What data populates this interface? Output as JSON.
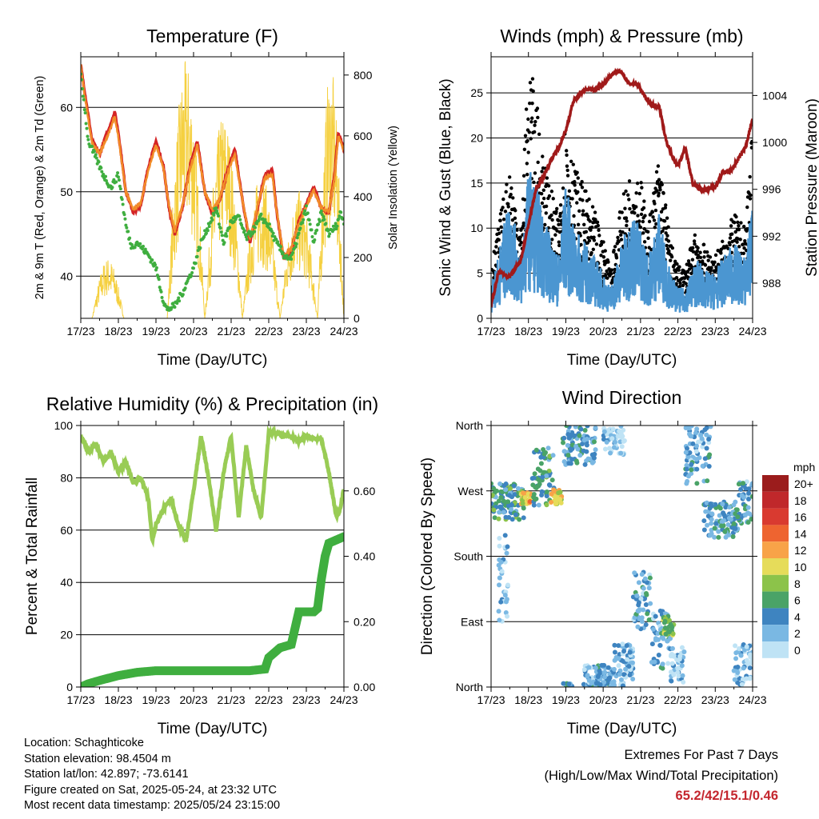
{
  "colors": {
    "temp_red": "#d42426",
    "temp_orange": "#f28c28",
    "dewpoint_green": "#3fae3f",
    "solar_yellow": "#f5d040",
    "wind_blue": "#4b96d1",
    "gust_black": "#000000",
    "pressure_maroon": "#a01a1a",
    "rh_green": "#99cc55",
    "precip_green": "#3fae3f",
    "extremes_red": "#c4262e"
  },
  "x_ticks": [
    "17/23",
    "18/23",
    "19/23",
    "20/23",
    "21/23",
    "22/23",
    "23/23",
    "24/23"
  ],
  "info": {
    "location": "Location: Schaghticoke",
    "elevation": "Station elevation: 98.4504 m",
    "latlon": "Station lat/lon: 42.897; -73.6141",
    "created": "Figure created on Sat, 2025-05-24, at 23:32 UTC",
    "latest": "Most recent data timestamp: 2025/05/24 23:15:00"
  },
  "extremes": {
    "title": "Extremes For Past 7 Days",
    "subtitle": "(High/Low/Max Wind/Total Precipitation)",
    "values": "65.2/42/15.1/0.46"
  },
  "chart_data": [
    {
      "type": "line",
      "title": "Temperature (F)",
      "xlabel": "Time (Day/UTC)",
      "ylabel": "2m & 9m T (Red, Orange) & 2m Td (Green)",
      "ylabel_right": "Solar Insolation (Yellow)",
      "x_unit": "days since 17/23",
      "xlim": [
        0,
        7
      ],
      "ylim": [
        35,
        66
      ],
      "ylim_right": [
        0,
        860
      ],
      "yticks": [
        40,
        50,
        60
      ],
      "yticks_right": [
        0,
        200,
        400,
        600,
        800
      ],
      "grid": true,
      "series": [
        {
          "name": "2m T",
          "color": "#d42426",
          "x": [
            0,
            0.1,
            0.3,
            0.5,
            0.7,
            0.8,
            0.9,
            1.0,
            1.2,
            1.4,
            1.6,
            1.8,
            2.0,
            2.2,
            2.35,
            2.5,
            2.7,
            2.9,
            3.1,
            3.3,
            3.5,
            3.7,
            3.9,
            4.1,
            4.3,
            4.5,
            4.7,
            4.9,
            5.1,
            5.2,
            5.4,
            5.6,
            5.8,
            6.0,
            6.2,
            6.4,
            6.6,
            6.75,
            6.85,
            7.0
          ],
          "values": [
            65,
            62,
            56,
            54.5,
            57,
            58,
            59.5,
            57,
            50,
            47.5,
            48.5,
            53,
            56,
            53,
            48,
            45,
            48,
            53,
            56,
            50,
            47.5,
            49,
            52.5,
            55,
            49,
            44,
            48,
            52,
            52.5,
            48,
            42,
            43,
            46.5,
            48.5,
            50.5,
            48,
            47.5,
            52,
            57,
            55
          ]
        },
        {
          "name": "9m T",
          "color": "#f28c28",
          "x": [
            0,
            0.1,
            0.3,
            0.5,
            0.7,
            0.8,
            0.9,
            1.0,
            1.2,
            1.4,
            1.6,
            1.8,
            2.0,
            2.2,
            2.35,
            2.5,
            2.7,
            2.9,
            3.1,
            3.3,
            3.5,
            3.7,
            3.9,
            4.1,
            4.3,
            4.5,
            4.7,
            4.9,
            5.1,
            5.2,
            5.4,
            5.6,
            5.8,
            6.0,
            6.2,
            6.4,
            6.6,
            6.75,
            6.85,
            7.0
          ],
          "values": [
            65,
            61.5,
            55.8,
            54.5,
            56.5,
            57.5,
            59,
            56.5,
            50,
            47.8,
            48.8,
            52.6,
            55.5,
            52.8,
            48.2,
            45.3,
            48.2,
            52.6,
            55.5,
            50,
            47.8,
            49.2,
            52.2,
            54.5,
            49,
            44.3,
            48.2,
            51.6,
            52,
            48,
            42.3,
            43.2,
            46.3,
            48.3,
            50.2,
            48,
            47.7,
            51.6,
            56.5,
            55
          ]
        },
        {
          "name": "2m Td",
          "color": "#3fae3f",
          "x": [
            0,
            0.2,
            0.4,
            0.6,
            0.8,
            1.0,
            1.2,
            1.35,
            1.5,
            1.8,
            2.0,
            2.1,
            2.2,
            2.3,
            2.5,
            2.7,
            3.0,
            3.2,
            3.4,
            3.6,
            3.8,
            4.0,
            4.2,
            4.4,
            4.6,
            4.8,
            5.0,
            5.2,
            5.4,
            5.6,
            5.8,
            6.0,
            6.2,
            6.4,
            6.6,
            6.8,
            6.9,
            7.0
          ],
          "values": [
            64,
            56,
            54,
            52,
            50.5,
            52,
            46,
            43.5,
            44,
            42.5,
            41,
            39,
            37,
            36,
            36.5,
            38,
            41,
            44,
            46,
            48,
            44,
            46.5,
            47,
            44.5,
            45.5,
            47,
            46,
            44,
            42.5,
            42,
            45,
            48,
            44,
            47.5,
            45,
            46,
            47.5,
            46.5
          ]
        }
      ],
      "series_right": [
        {
          "name": "Solar Insolation",
          "color": "#f5d040",
          "days": [
            {
              "start": 0.3,
              "end": 1.15,
              "peak": 200
            },
            {
              "start": 2.3,
              "end": 3.3,
              "peak": 850
            },
            {
              "start": 3.3,
              "end": 4.3,
              "peak": 680
            },
            {
              "start": 4.3,
              "end": 5.3,
              "peak": 480
            },
            {
              "start": 5.3,
              "end": 6.3,
              "peak": 420
            },
            {
              "start": 6.3,
              "end": 7.0,
              "peak": 830
            }
          ]
        }
      ]
    },
    {
      "type": "scatter",
      "title": "Winds (mph) & Pressure (mb)",
      "xlabel": "Time (Day/UTC)",
      "ylabel": "Sonic Wind & Gust (Blue, Black)",
      "ylabel_right": "Station Pressure (Maroon)",
      "x_unit": "days since 17/23",
      "xlim": [
        0,
        7
      ],
      "ylim": [
        0,
        29
      ],
      "ylim_right": [
        985,
        1007.3
      ],
      "yticks": [
        0,
        5,
        10,
        15,
        20,
        25
      ],
      "yticks_right": [
        988,
        992,
        996,
        1000,
        1004
      ],
      "grid": true,
      "series": [
        {
          "name": "Wind",
          "color": "#4b96d1",
          "x": [
            0,
            0.5,
            0.8,
            1.0,
            1.2,
            1.5,
            1.8,
            2.0,
            2.2,
            2.5,
            2.8,
            3.0,
            3.2,
            3.5,
            3.8,
            4.0,
            4.2,
            4.5,
            4.8,
            5.0,
            5.2,
            5.5,
            5.8,
            6.0,
            6.2,
            6.5,
            6.8,
            7.0
          ],
          "values": [
            2,
            8,
            4,
            10,
            9,
            6,
            4,
            9,
            6,
            5,
            4,
            3,
            2,
            5,
            7,
            6,
            4,
            7,
            3,
            2,
            2,
            4,
            3,
            3,
            4,
            5,
            4,
            8
          ]
        },
        {
          "name": "Gust",
          "color": "#000000",
          "x": [
            0,
            0.5,
            0.8,
            1.0,
            1.2,
            1.5,
            1.8,
            2.0,
            2.2,
            2.5,
            2.8,
            3.0,
            3.2,
            3.5,
            3.8,
            4.0,
            4.2,
            4.5,
            4.8,
            5.0,
            5.2,
            5.5,
            5.8,
            6.0,
            6.2,
            6.5,
            6.8,
            7.0
          ],
          "values": [
            4,
            12,
            7,
            20,
            17,
            11,
            8,
            16,
            12,
            10,
            8,
            6,
            4,
            9,
            12,
            11,
            7,
            13,
            6,
            4,
            4,
            7,
            5,
            5,
            6,
            8,
            7,
            16
          ]
        }
      ],
      "series_right": [
        {
          "name": "Pressure",
          "color": "#a01a1a",
          "x": [
            0,
            0.2,
            0.5,
            0.8,
            1.0,
            1.2,
            1.4,
            1.6,
            1.8,
            2.0,
            2.2,
            2.5,
            2.8,
            3.0,
            3.3,
            3.5,
            3.7,
            3.9,
            4.1,
            4.3,
            4.5,
            4.7,
            4.9,
            5.0,
            5.2,
            5.4,
            5.6,
            5.8,
            6.0,
            6.2,
            6.4,
            6.6,
            6.8,
            7.0
          ],
          "values": [
            986,
            989,
            988.5,
            990,
            993,
            996,
            997,
            998.5,
            999.5,
            1001,
            1003.5,
            1004.5,
            1004.5,
            1005,
            1006,
            1006,
            1005,
            1005,
            1004,
            1003.2,
            1003,
            1000,
            998.5,
            998,
            999.5,
            996.5,
            996,
            996,
            996.2,
            997.5,
            997.5,
            998.5,
            999.5,
            1002
          ]
        }
      ]
    },
    {
      "type": "line",
      "title": "Relative Humidity (%) & Precipitation (in)",
      "xlabel": "Time (Day/UTC)",
      "ylabel": "Percent & Total Rainfall",
      "x_unit": "days since 17/23",
      "xlim": [
        0,
        7
      ],
      "ylim": [
        0,
        100
      ],
      "ylim_right": [
        0,
        0.8
      ],
      "yticks": [
        0,
        20,
        40,
        60,
        80,
        100
      ],
      "yticks_right": [
        0.0,
        0.2,
        0.4,
        0.6
      ],
      "grid": true,
      "series": [
        {
          "name": "Relative Humidity",
          "color": "#99cc55",
          "x": [
            0,
            0.2,
            0.4,
            0.6,
            0.8,
            1.0,
            1.2,
            1.4,
            1.6,
            1.8,
            1.9,
            2.0,
            2.2,
            2.4,
            2.6,
            2.8,
            3.0,
            3.2,
            3.4,
            3.6,
            3.8,
            4.0,
            4.2,
            4.4,
            4.6,
            4.8,
            5.0,
            5.2,
            5.4,
            5.6,
            5.8,
            6.0,
            6.2,
            6.4,
            6.6,
            6.8,
            6.9,
            7.0
          ],
          "values": [
            96,
            90,
            93,
            86,
            90,
            82,
            86,
            78,
            80,
            72,
            56,
            62,
            68,
            72,
            62,
            56,
            75,
            96,
            80,
            60,
            82,
            96,
            65,
            92,
            75,
            65,
            97,
            97,
            96,
            96,
            94,
            96,
            95,
            95,
            82,
            65,
            68,
            76
          ]
        },
        {
          "name": "Total Precipitation",
          "color": "#3fae3f",
          "axis": "right",
          "x": [
            0,
            0.2,
            0.5,
            1.0,
            1.5,
            2.0,
            2.5,
            3.0,
            3.5,
            4.0,
            4.5,
            4.9,
            5.0,
            5.1,
            5.3,
            5.6,
            5.8,
            6.0,
            6.2,
            6.3,
            6.4,
            6.5,
            6.6,
            6.8,
            7.0
          ],
          "values": [
            0,
            0.01,
            0.02,
            0.035,
            0.045,
            0.05,
            0.05,
            0.05,
            0.05,
            0.05,
            0.05,
            0.055,
            0.09,
            0.1,
            0.12,
            0.13,
            0.23,
            0.23,
            0.23,
            0.24,
            0.33,
            0.4,
            0.44,
            0.45,
            0.46
          ]
        }
      ]
    },
    {
      "type": "scatter",
      "title": "Wind Direction",
      "xlabel": "Time (Day/UTC)",
      "ylabel": "Direction (Colored By Speed)",
      "x_unit": "days since 17/23",
      "xlim": [
        0,
        7
      ],
      "ylim": [
        0,
        360
      ],
      "y_ticklabels": [
        "North",
        "East",
        "South",
        "West",
        "North"
      ],
      "grid": true,
      "colorbar": {
        "title": "mph",
        "labels": [
          "20+",
          "18",
          "16",
          "14",
          "12",
          "10",
          "8",
          "6",
          "4",
          "2",
          "0"
        ],
        "colors": [
          "#9b1c1c",
          "#c0282b",
          "#d93a30",
          "#ee6430",
          "#f8a348",
          "#e6dc5a",
          "#8cc34a",
          "#4aa367",
          "#3e84c0",
          "#7ab8e3",
          "#bfe3f5"
        ]
      },
      "series": [
        {
          "name": "Direction",
          "clusters": [
            {
              "x0": 0.0,
              "x1": 0.9,
              "dir": 255,
              "spread": 25,
              "speed": 5
            },
            {
              "x0": 0.8,
              "x1": 1.1,
              "dir": 260,
              "spread": 8,
              "speed": 11
            },
            {
              "x0": 1.1,
              "x1": 1.7,
              "dir": 290,
              "spread": 40,
              "speed": 5
            },
            {
              "x0": 1.6,
              "x1": 1.9,
              "dir": 262,
              "spread": 10,
              "speed": 10
            },
            {
              "x0": 1.9,
              "x1": 2.8,
              "dir": 335,
              "spread": 30,
              "speed": 4
            },
            {
              "x0": 3.0,
              "x1": 3.6,
              "dir": 345,
              "spread": 25,
              "speed": 1
            },
            {
              "x0": 0.2,
              "x1": 0.5,
              "dir": 150,
              "spread": 60,
              "speed": 1
            },
            {
              "x0": 2.5,
              "x1": 3.3,
              "dir": 15,
              "spread": 15,
              "speed": 3
            },
            {
              "x0": 3.3,
              "x1": 3.8,
              "dir": 35,
              "spread": 25,
              "speed": 2
            },
            {
              "x0": 3.8,
              "x1": 4.3,
              "dir": 120,
              "spread": 40,
              "speed": 3
            },
            {
              "x0": 4.3,
              "x1": 4.8,
              "dir": 65,
              "spread": 40,
              "speed": 3
            },
            {
              "x0": 4.6,
              "x1": 4.9,
              "dir": 85,
              "spread": 15,
              "speed": 8
            },
            {
              "x0": 4.8,
              "x1": 5.2,
              "dir": 30,
              "spread": 25,
              "speed": 1
            },
            {
              "x0": 5.2,
              "x1": 5.9,
              "dir": 320,
              "spread": 40,
              "speed": 3
            },
            {
              "x0": 5.7,
              "x1": 6.6,
              "dir": 230,
              "spread": 25,
              "speed": 4
            },
            {
              "x0": 6.6,
              "x1": 7.0,
              "dir": 255,
              "spread": 30,
              "speed": 3
            },
            {
              "x0": 6.5,
              "x1": 7.0,
              "dir": 30,
              "spread": 30,
              "speed": 2
            }
          ]
        }
      ]
    }
  ]
}
